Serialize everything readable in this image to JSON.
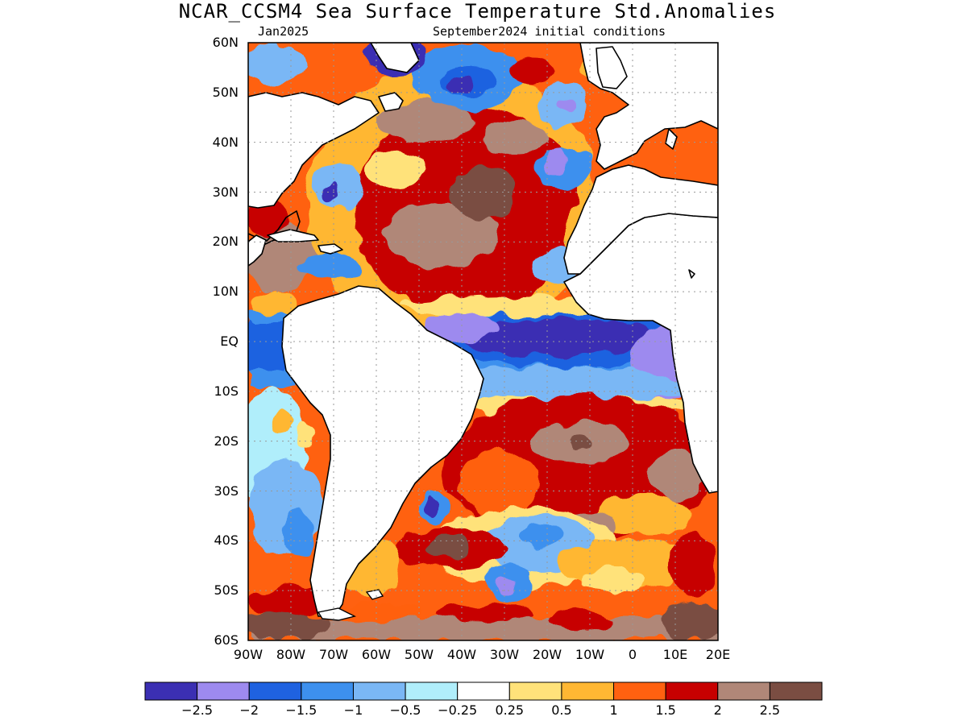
{
  "title": "NCAR_CCSM4 Sea Surface Temperature Std.Anomalies",
  "valid_month": "Jan2025",
  "init_text": "September2024 initial conditions",
  "lat_labels": [
    "60N",
    "50N",
    "40N",
    "30N",
    "20N",
    "10N",
    "EQ",
    "10S",
    "20S",
    "30S",
    "40S",
    "50S",
    "60S"
  ],
  "lon_labels": [
    "90W",
    "80W",
    "70W",
    "60W",
    "50W",
    "40W",
    "30W",
    "20W",
    "10W",
    "0",
    "10E",
    "20E"
  ],
  "colorbar": {
    "colors": [
      "#3b2fb3",
      "#9d8aef",
      "#1f62e0",
      "#3d90ee",
      "#7ab7f5",
      "#b0eefb",
      "#ffffff",
      "#ffe27a",
      "#ffb733",
      "#ff6110",
      "#c70000",
      "#b08778",
      "#7a4d42"
    ],
    "labels": [
      "−2.5",
      "−2",
      "−1.5",
      "−1",
      "−0.5",
      "−0.25",
      "0.25",
      "0.5",
      "1",
      "1.5",
      "2",
      "2.5"
    ]
  },
  "map": {
    "lon_range": [
      -90,
      20
    ],
    "lat_range": [
      -60,
      60
    ]
  }
}
